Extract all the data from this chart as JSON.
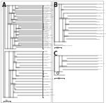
{
  "bg_color": "#ffffff",
  "line_color": "#2a2a2a",
  "text_color": "#1a1a1a",
  "gray_text": "#999999",
  "border_color": "#888888",
  "label_A": "A",
  "label_B": "B",
  "label_C": "C",
  "fig_width": 1.5,
  "fig_height": 1.48,
  "dpi": 100
}
